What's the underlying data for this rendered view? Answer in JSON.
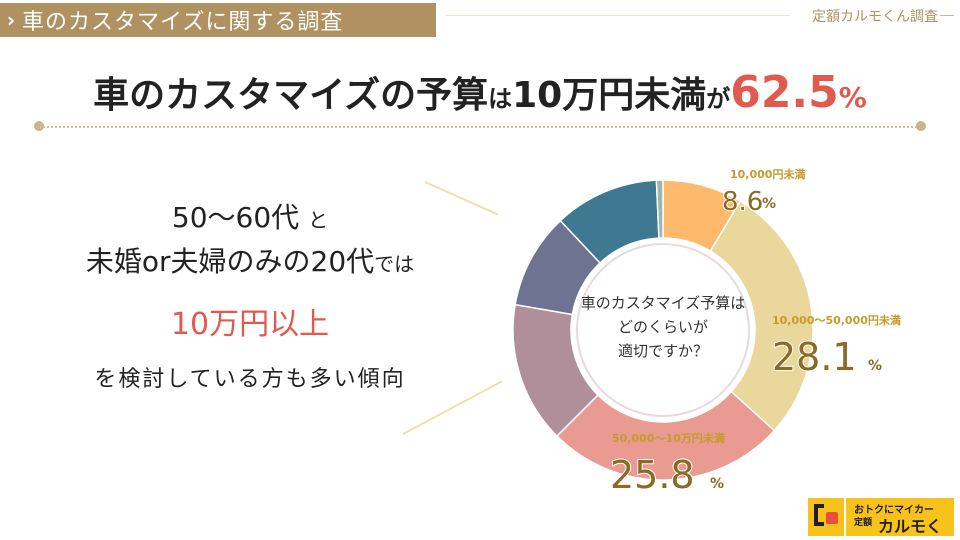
{
  "header": {
    "title": "車のカスタマイズに関する調査",
    "brand": "定額カルモくん調査"
  },
  "headline": {
    "part1": "車のカスタマイズの予算",
    "part2": "は",
    "part3": "10万円未満",
    "part4": "が",
    "value": "62.5",
    "unit": "%"
  },
  "left": {
    "line1_a": "50〜60代",
    "line1_b": "と",
    "line2_a": "未婚or夫婦のみの20代",
    "line2_b": "では",
    "accent": "10万円以上",
    "line4": "を検討している方も多い傾向"
  },
  "chart_data": {
    "type": "pie",
    "center_label": [
      "車のカスタマイズ予算は",
      "どのくらいが",
      "適切ですか？"
    ],
    "slices": [
      {
        "label": "10,000円未満",
        "value": 8.6,
        "color": "#fdba6c",
        "labeled": true
      },
      {
        "label": "10,000〜50,000円未満",
        "value": 28.1,
        "color": "#e9d79b",
        "labeled": true
      },
      {
        "label": "50,000〜10万円未満",
        "value": 25.8,
        "color": "#e99a91",
        "labeled": true
      },
      {
        "label": "",
        "value": 15.2,
        "color": "#b08e9a",
        "labeled": false
      },
      {
        "label": "",
        "value": 10.3,
        "color": "#6d7390",
        "labeled": false
      },
      {
        "label": "",
        "value": 11.3,
        "color": "#3e7891",
        "labeled": false
      },
      {
        "label": "",
        "value": 0.7,
        "color": "#9fb5a8",
        "labeled": false
      }
    ],
    "unit": "%"
  },
  "logo": {
    "line1": "おトクにマイカー",
    "line2": "定額",
    "line3": "カルモくん"
  },
  "colors": {
    "accent": "#e05a4e",
    "gold": "#b09161",
    "label_brown": "#8a6a25",
    "label_yellow": "#c79a2b"
  }
}
